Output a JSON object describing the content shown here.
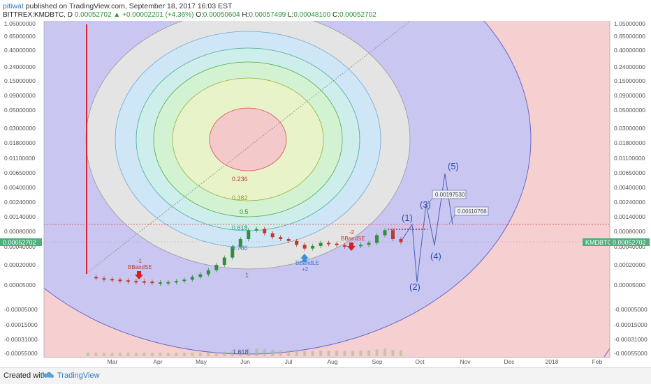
{
  "header": {
    "user": "pitiwat",
    "published": " published on TradingView.com, September 18, 2017 16:03 EST",
    "symbol": "BITTREX:KMDBTC, D",
    "last": "0.00052702",
    "change": "▲ +0.00002201 (+4.36%)",
    "o_label": "O:",
    "o": "0.00050604",
    "h_label": "H:",
    "h": "0.00057499",
    "l_label": "L:",
    "l": "0.00048100",
    "c_label": "C:",
    "c": "0.00052702"
  },
  "footer": {
    "made_with": "Created with",
    "brand": "TradingView"
  },
  "colors": {
    "up": "#2f8f3a",
    "down": "#c0392b",
    "ellipse_outer": "#c9c7f2",
    "background_pink": "#f6cfd0",
    "grey_zone": "#e3e3e3",
    "wave": "#2f4fa8",
    "price_tag": "#4caf7c"
  },
  "chart_data": {
    "type": "candlestick",
    "title": "",
    "xlabel": "",
    "ylabel": "",
    "y_scale": "non-linear (printed price levels)",
    "y_ticks": [
      "1.05000000",
      "0.65000000",
      "0.40000000",
      "0.24000000",
      "0.15000000",
      "0.09000000",
      "0.05000000",
      "0.03000000",
      "0.01800000",
      "0.01100000",
      "0.00650000",
      "0.00400000",
      "0.00240000",
      "0.00140000",
      "0.00080000",
      "0.00040000",
      "0.00020000",
      "0.00005000",
      "-0.00005000",
      "-0.00015000",
      "-0.00031000",
      "-0.00055000"
    ],
    "x_ticks": [
      "Mar",
      "Apr",
      "May",
      "Jun",
      "Jul",
      "Aug",
      "Sep",
      "Oct",
      "Nov",
      "Dec",
      "2018",
      "Feb"
    ],
    "current_price": "0.00052702",
    "current_price_label": "KMDBTC",
    "fib_levels": [
      "0.236",
      "0.382",
      "0.5",
      "0.618",
      "0.786",
      "1",
      "1.618"
    ],
    "annotations": {
      "signals": [
        {
          "text": "-1",
          "label": "BBandSE",
          "kind": "sell"
        },
        {
          "text": "+2",
          "label": "BBandLE",
          "kind": "buy"
        },
        {
          "text": "-2",
          "label": "BBandSE",
          "kind": "sell"
        }
      ],
      "wave_labels": [
        "(1)",
        "(2)",
        "(3)",
        "(4)",
        "(5)"
      ],
      "price_callouts": [
        "0.00197530",
        "0.00110766"
      ]
    },
    "series": [
      {
        "values": [
          0.00011,
          0.0001,
          9.5e-05,
          9e-05,
          8.5e-05,
          8e-05,
          7.8e-05,
          7.5e-05,
          7e-05,
          7e-05,
          7.2e-05,
          8e-05,
          9e-05,
          0.00011,
          0.00013,
          0.00016,
          0.0002,
          0.00028,
          0.0004,
          0.0006,
          0.00085,
          0.0009,
          0.00075,
          0.00065,
          0.0006,
          0.00055,
          0.00045,
          0.00038,
          0.00042,
          0.0005,
          0.00048,
          0.00044,
          0.0004,
          0.00042,
          0.00045,
          0.0005,
          0.0007,
          0.00085,
          0.0006,
          0.00052
        ]
      }
    ]
  }
}
